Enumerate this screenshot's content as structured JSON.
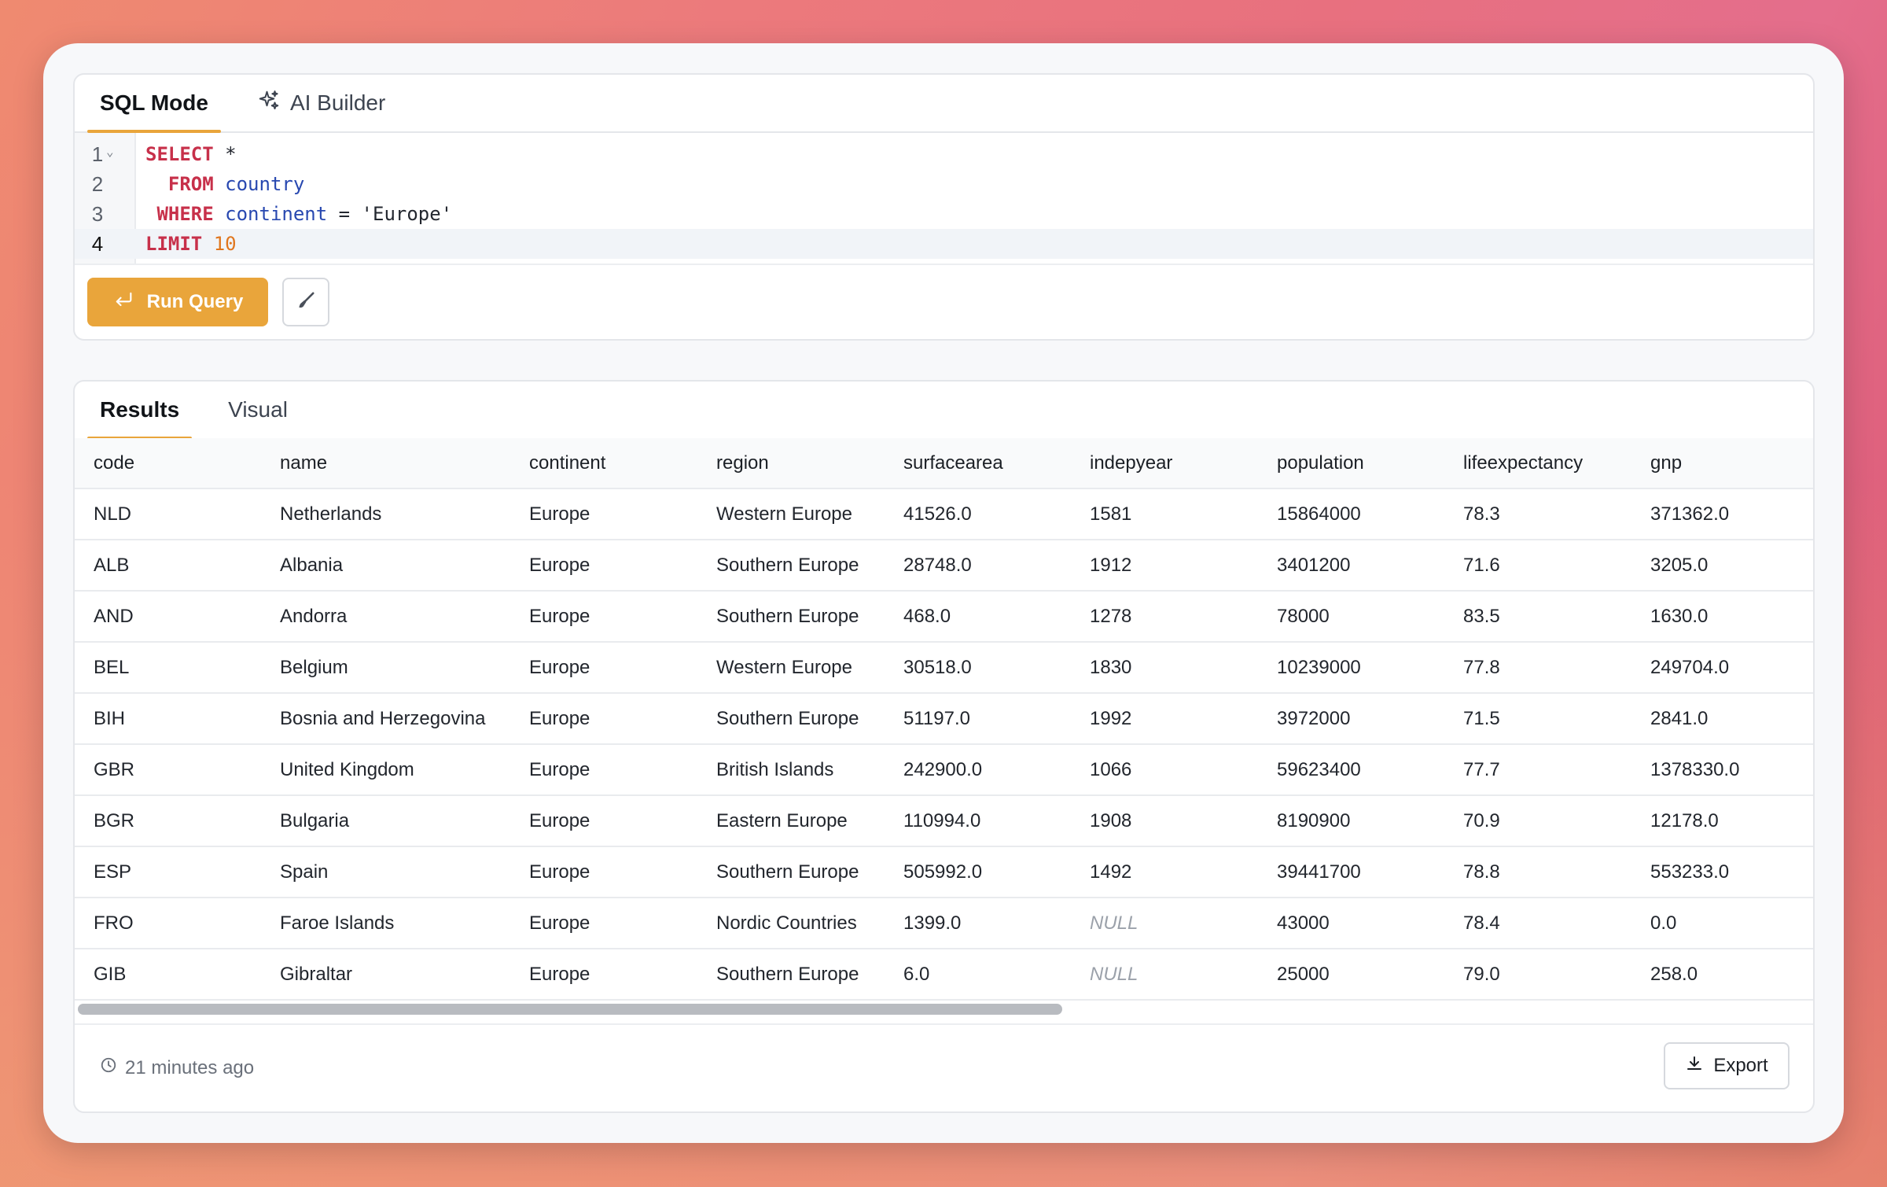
{
  "editor": {
    "tabs": [
      {
        "label": "SQL Mode",
        "active": true,
        "icon": null
      },
      {
        "label": "AI Builder",
        "active": false,
        "icon": "sparkles-icon"
      }
    ],
    "lines": [
      {
        "number": "1",
        "tokens": [
          {
            "t": "SELECT",
            "k": "kw"
          },
          {
            "t": " *",
            "k": "str"
          }
        ]
      },
      {
        "number": "2",
        "tokens": [
          {
            "t": "  FROM",
            "k": "kw"
          },
          {
            "t": " ",
            "k": "str"
          },
          {
            "t": "country",
            "k": "id"
          }
        ]
      },
      {
        "number": "3",
        "tokens": [
          {
            "t": " WHERE",
            "k": "kw"
          },
          {
            "t": " ",
            "k": "str"
          },
          {
            "t": "continent",
            "k": "id"
          },
          {
            "t": " = 'Europe'",
            "k": "str"
          }
        ]
      },
      {
        "number": "4",
        "tokens": [
          {
            "t": "LIMIT",
            "k": "kw"
          },
          {
            "t": " ",
            "k": "str"
          },
          {
            "t": "10",
            "k": "numlit"
          }
        ]
      }
    ],
    "current_line": 4,
    "run_label": "Run Query",
    "accent_color": "#e9a53b"
  },
  "results": {
    "tabs": [
      {
        "label": "Results",
        "active": true
      },
      {
        "label": "Visual",
        "active": false
      }
    ],
    "columns": [
      "code",
      "name",
      "continent",
      "region",
      "surfacearea",
      "indepyear",
      "population",
      "lifeexpectancy",
      "gnp"
    ],
    "rows": [
      [
        "NLD",
        "Netherlands",
        "Europe",
        "Western Europe",
        "41526.0",
        "1581",
        "15864000",
        "78.3",
        "371362.0"
      ],
      [
        "ALB",
        "Albania",
        "Europe",
        "Southern Europe",
        "28748.0",
        "1912",
        "3401200",
        "71.6",
        "3205.0"
      ],
      [
        "AND",
        "Andorra",
        "Europe",
        "Southern Europe",
        "468.0",
        "1278",
        "78000",
        "83.5",
        "1630.0"
      ],
      [
        "BEL",
        "Belgium",
        "Europe",
        "Western Europe",
        "30518.0",
        "1830",
        "10239000",
        "77.8",
        "249704.0"
      ],
      [
        "BIH",
        "Bosnia and Herzegovina",
        "Europe",
        "Southern Europe",
        "51197.0",
        "1992",
        "3972000",
        "71.5",
        "2841.0"
      ],
      [
        "GBR",
        "United Kingdom",
        "Europe",
        "British Islands",
        "242900.0",
        "1066",
        "59623400",
        "77.7",
        "1378330.0"
      ],
      [
        "BGR",
        "Bulgaria",
        "Europe",
        "Eastern Europe",
        "110994.0",
        "1908",
        "8190900",
        "70.9",
        "12178.0"
      ],
      [
        "ESP",
        "Spain",
        "Europe",
        "Southern Europe",
        "505992.0",
        "1492",
        "39441700",
        "78.8",
        "553233.0"
      ],
      [
        "FRO",
        "Faroe Islands",
        "Europe",
        "Nordic Countries",
        "1399.0",
        "NULL",
        "43000",
        "78.4",
        "0.0"
      ],
      [
        "GIB",
        "Gibraltar",
        "Europe",
        "Southern Europe",
        "6.0",
        "NULL",
        "25000",
        "79.0",
        "258.0"
      ]
    ],
    "timestamp": "21 minutes ago",
    "export_label": "Export"
  }
}
